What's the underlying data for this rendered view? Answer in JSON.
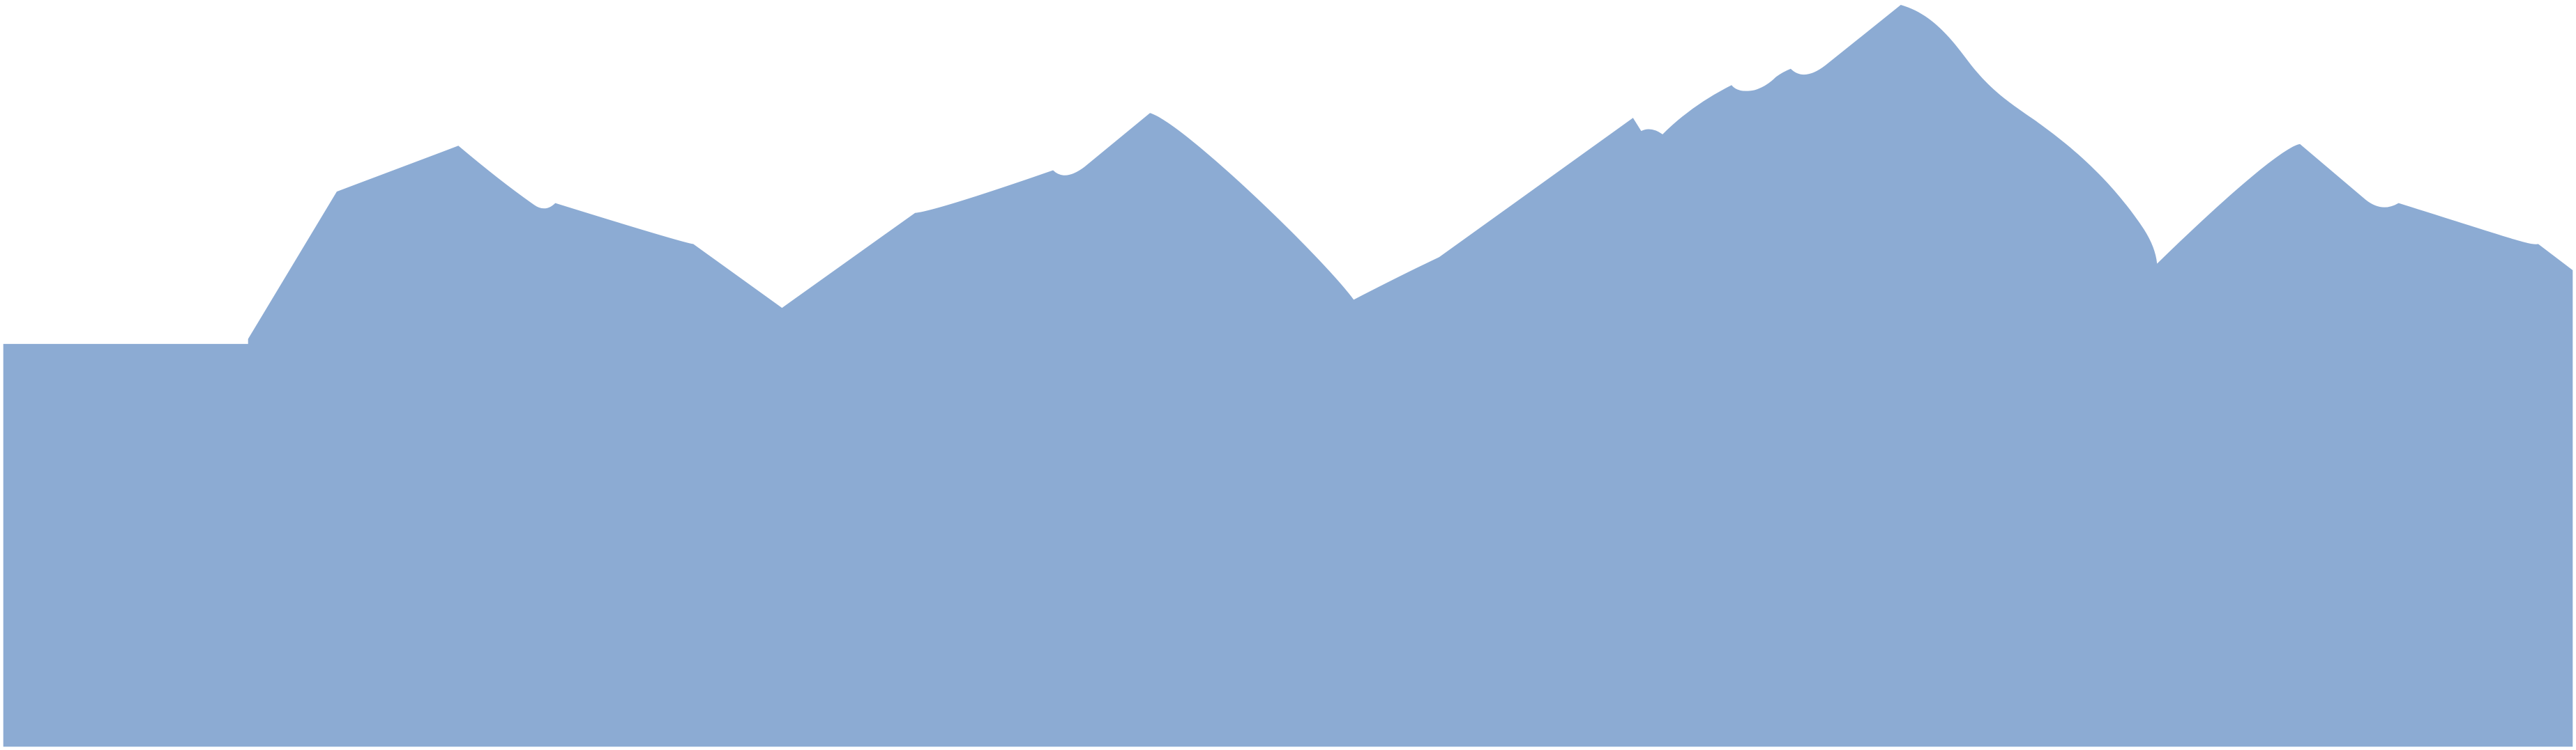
{
  "graphic": {
    "subject": "mountain-range-silhouette",
    "fill_color": "#8CABD3",
    "background_color": "#FFFFFF"
  }
}
